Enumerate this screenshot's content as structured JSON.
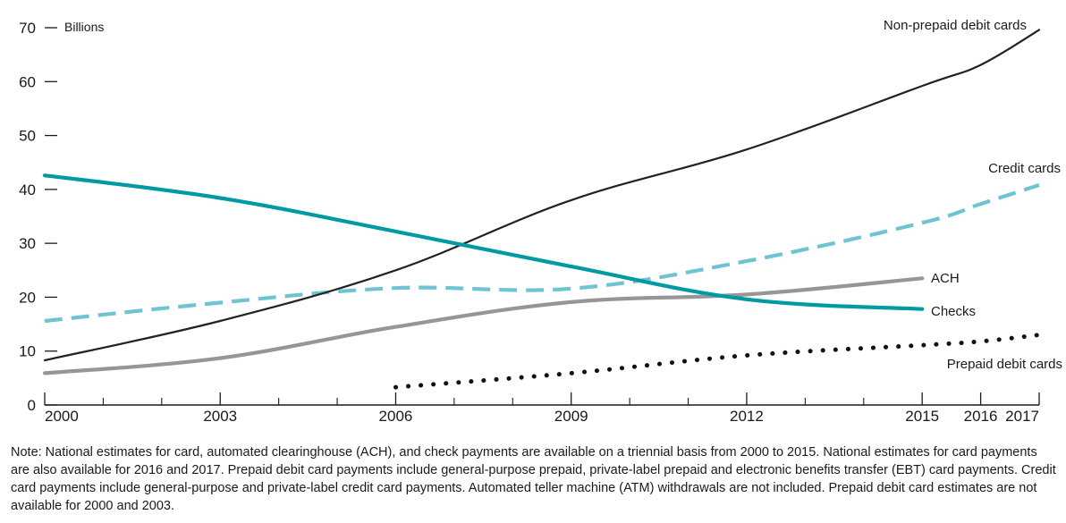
{
  "chart_data": {
    "type": "line",
    "title": "",
    "xlabel": "",
    "ylabel": "",
    "unit_label": "Billions",
    "xlim": [
      2000,
      2017
    ],
    "ylim": [
      0,
      70
    ],
    "x_ticks": [
      2000,
      2003,
      2006,
      2009,
      2012,
      2015,
      2016,
      2017
    ],
    "x_minor_ticks": [
      2001,
      2002,
      2004,
      2005,
      2007,
      2008,
      2010,
      2011,
      2013,
      2014
    ],
    "y_ticks": [
      0,
      10,
      20,
      30,
      40,
      50,
      60,
      70
    ],
    "grid": false,
    "legend": "direct labels at line ends",
    "series": [
      {
        "name": "Non-prepaid debit cards",
        "x": [
          2000,
          2003,
          2006,
          2009,
          2012,
          2015,
          2016,
          2017
        ],
        "values": [
          8.3,
          15.6,
          25.0,
          38.0,
          47.4,
          59.2,
          63.1,
          69.6
        ],
        "color": "#222222",
        "style": "solid-thin"
      },
      {
        "name": "Credit cards",
        "x": [
          2000,
          2003,
          2006,
          2009,
          2012,
          2015,
          2016,
          2017
        ],
        "values": [
          15.6,
          19.0,
          21.7,
          21.6,
          26.7,
          33.8,
          37.3,
          40.8
        ],
        "color": "#6fc4d2",
        "style": "dashed"
      },
      {
        "name": "ACH",
        "x": [
          2000,
          2003,
          2006,
          2009,
          2012,
          2015
        ],
        "values": [
          5.9,
          8.7,
          14.5,
          19.1,
          20.5,
          23.5
        ],
        "color": "#969696",
        "style": "solid-thick"
      },
      {
        "name": "Checks",
        "x": [
          2000,
          2003,
          2006,
          2009,
          2012,
          2015
        ],
        "values": [
          42.6,
          38.4,
          32.2,
          25.7,
          19.6,
          17.8
        ],
        "color": "#009aa3",
        "style": "solid-thick"
      },
      {
        "name": "Prepaid debit cards",
        "x": [
          2006,
          2009,
          2012,
          2015,
          2016,
          2017
        ],
        "values": [
          3.3,
          5.9,
          9.2,
          11.1,
          11.8,
          13.0
        ],
        "color": "#111111",
        "style": "dotted"
      }
    ]
  },
  "note": "Note: National estimates for card, automated clearinghouse (ACH), and check payments are available on a triennial basis from 2000 to 2015. National estimates for card payments are also available for 2016 and 2017. Prepaid debit card payments include general-purpose prepaid, private-label prepaid and electronic benefits transfer (EBT) card payments. Credit card payments include general-purpose and private-label credit card payments. Automated teller machine (ATM) withdrawals are not included. Prepaid debit card estimates are not available for 2000 and 2003."
}
